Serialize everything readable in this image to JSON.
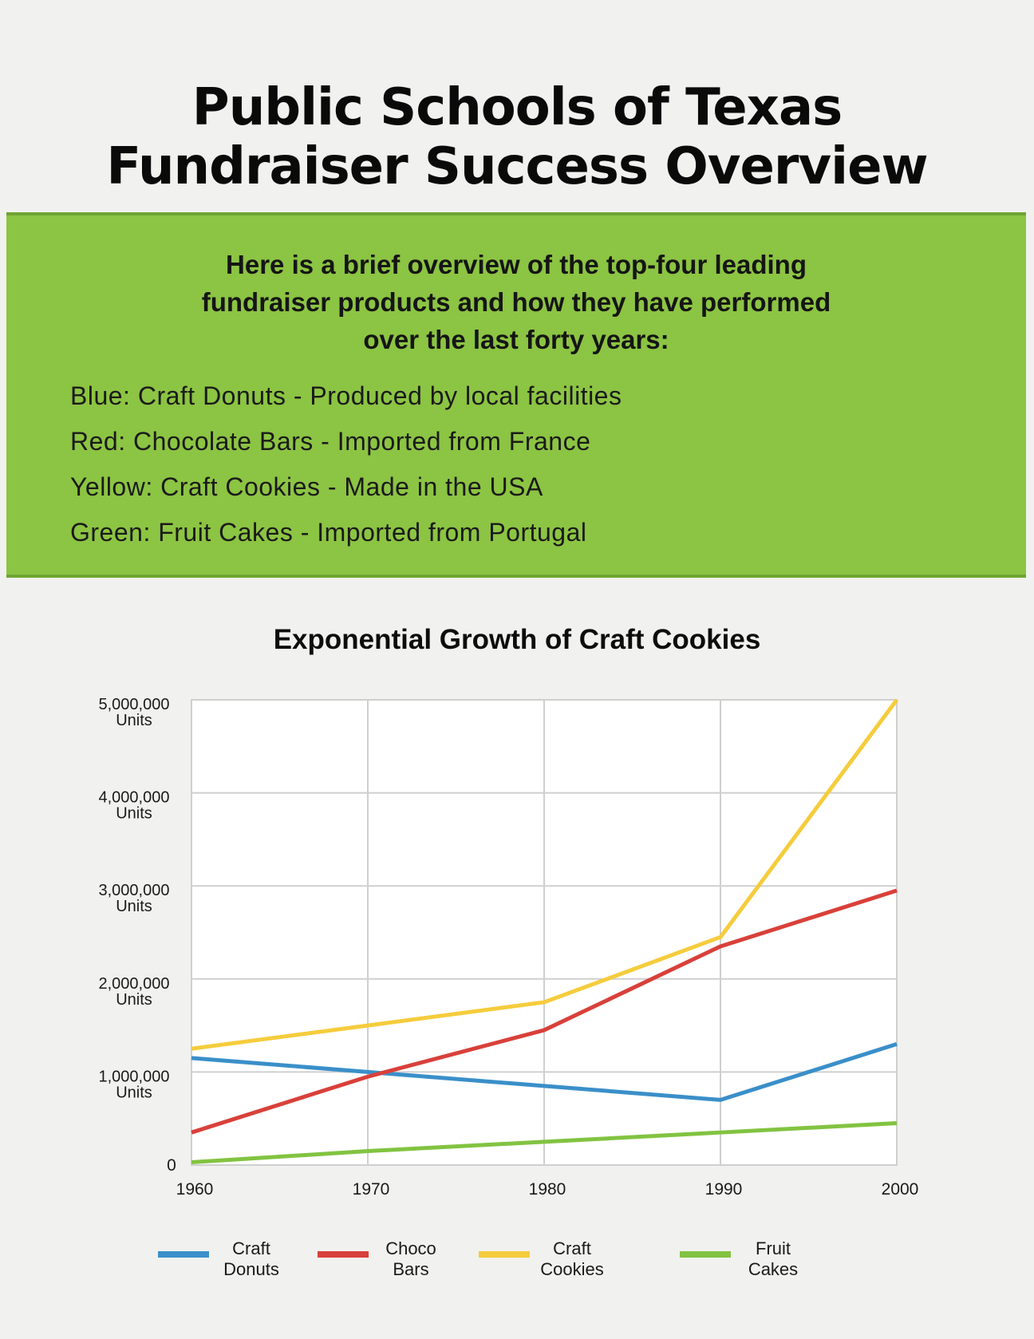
{
  "header": {
    "title_line1": "Public Schools of Texas",
    "title_line2": "Fundraiser Success Overview"
  },
  "panel": {
    "intro_line1": "Here is a brief overview of the top-four leading",
    "intro_line2": "fundraiser products and how they have performed",
    "intro_line3": "over the last forty years:",
    "items": [
      "Blue: Craft Donuts - Produced by local facilities",
      "Red: Chocolate Bars - Imported from France",
      "Yellow: Craft Cookies - Made in the USA",
      "Green: Fruit Cakes - Imported from Portugal"
    ],
    "color": "#8cc443"
  },
  "chart_data": {
    "type": "line",
    "title": "Exponential Growth of Craft Cookies",
    "x": [
      1960,
      1970,
      1980,
      1990,
      2000
    ],
    "x_tick_labels": [
      "1960",
      "1970",
      "1980",
      "1990",
      "2000"
    ],
    "y_ticks": [
      {
        "value": 0,
        "line1": "0",
        "line2": ""
      },
      {
        "value": 1000000,
        "line1": "1,000,000",
        "line2": "Units"
      },
      {
        "value": 2000000,
        "line1": "2,000,000",
        "line2": "Units"
      },
      {
        "value": 3000000,
        "line1": "3,000,000",
        "line2": "Units"
      },
      {
        "value": 4000000,
        "line1": "4,000,000",
        "line2": "Units"
      },
      {
        "value": 5000000,
        "line1": "5,000,000",
        "line2": "Units"
      }
    ],
    "ylim": [
      0,
      5000000
    ],
    "grid": true,
    "legend_position": "bottom",
    "series": [
      {
        "name": "Craft Donuts",
        "legend_line1": "Craft",
        "legend_line2": "Donuts",
        "color": "#3a8fc9",
        "points": [
          [
            1960,
            1150000
          ],
          [
            1970,
            1000000
          ],
          [
            1980,
            850000
          ],
          [
            1990,
            700000
          ],
          [
            2000,
            1300000
          ]
        ]
      },
      {
        "name": "Choco Bars",
        "legend_line1": "Choco",
        "legend_line2": "Bars",
        "color": "#d9403a",
        "points": [
          [
            1960,
            350000
          ],
          [
            1970,
            950000
          ],
          [
            1980,
            1450000
          ],
          [
            1990,
            2350000
          ],
          [
            2000,
            2950000
          ]
        ]
      },
      {
        "name": "Craft Cookies",
        "legend_line1": "Craft",
        "legend_line2": "Cookies",
        "color": "#f5cc3c",
        "points": [
          [
            1960,
            1250000
          ],
          [
            1970,
            1500000
          ],
          [
            1980,
            1750000
          ],
          [
            1990,
            2450000
          ],
          [
            2000,
            5000000
          ]
        ]
      },
      {
        "name": "Fruit Cakes",
        "legend_line1": "Fruit",
        "legend_line2": "Cakes",
        "color": "#82c341",
        "points": [
          [
            1960,
            30000
          ],
          [
            1970,
            150000
          ],
          [
            1980,
            250000
          ],
          [
            1990,
            350000
          ],
          [
            2000,
            450000
          ]
        ]
      }
    ]
  }
}
